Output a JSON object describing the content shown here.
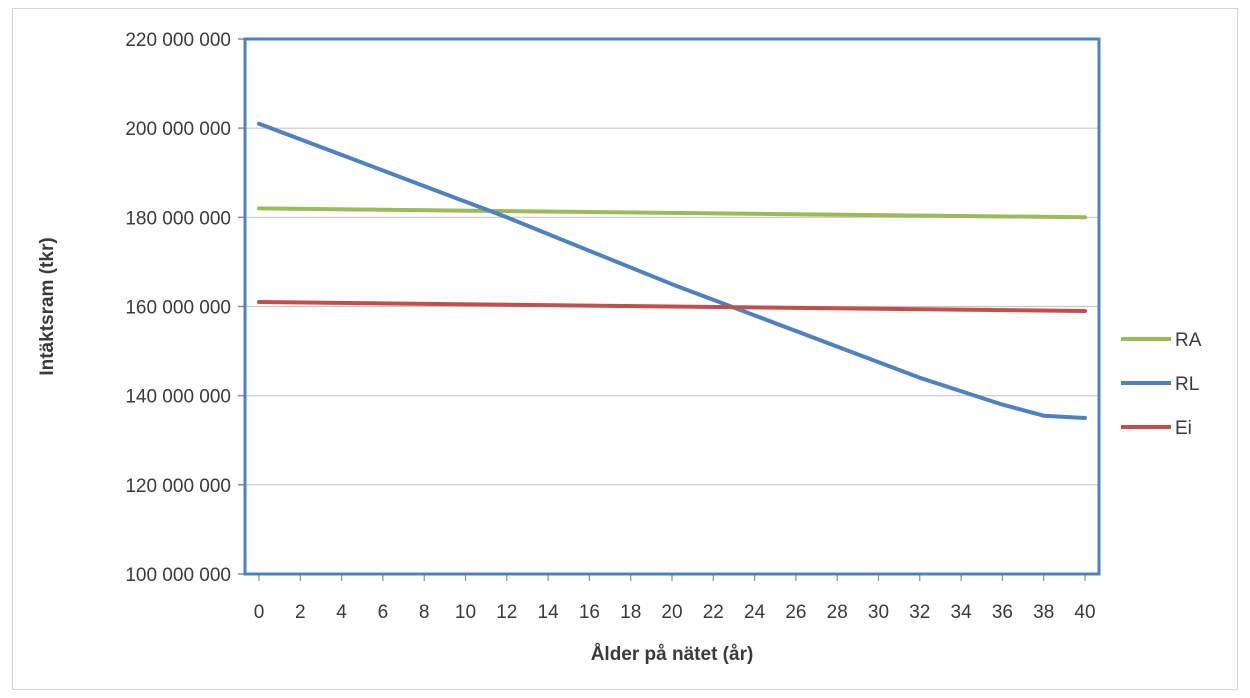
{
  "chart_data": {
    "type": "line",
    "title": "",
    "xlabel": "Ålder på nätet (år)",
    "ylabel": "Intäktsram (tkr)",
    "xlim": [
      0,
      40
    ],
    "ylim": [
      100000000,
      220000000
    ],
    "x_ticks": [
      0,
      2,
      4,
      6,
      8,
      10,
      12,
      14,
      16,
      18,
      20,
      22,
      24,
      26,
      28,
      30,
      32,
      34,
      36,
      38,
      40
    ],
    "y_ticks": [
      100000000,
      120000000,
      140000000,
      160000000,
      180000000,
      200000000,
      220000000
    ],
    "y_tick_labels": [
      "100 000 000",
      "120 000 000",
      "140 000 000",
      "160 000 000",
      "180 000 000",
      "200 000 000",
      "220 000 000"
    ],
    "grid": "horizontal",
    "legend_position": "right",
    "series": [
      {
        "name": "RA",
        "color": "#9bbb59",
        "x": [
          0,
          40
        ],
        "y": [
          182000000,
          180000000
        ]
      },
      {
        "name": "RL",
        "color": "#4f81bd",
        "x": [
          0,
          4,
          8,
          12,
          16,
          20,
          24,
          28,
          32,
          36,
          38,
          40
        ],
        "y": [
          201000000,
          194000000,
          187000000,
          180000000,
          172500000,
          165000000,
          158000000,
          151000000,
          144000000,
          138000000,
          135500000,
          135000000
        ]
      },
      {
        "name": "Ei",
        "color": "#c0504d",
        "x": [
          0,
          40
        ],
        "y": [
          161000000,
          159000000
        ]
      }
    ]
  }
}
